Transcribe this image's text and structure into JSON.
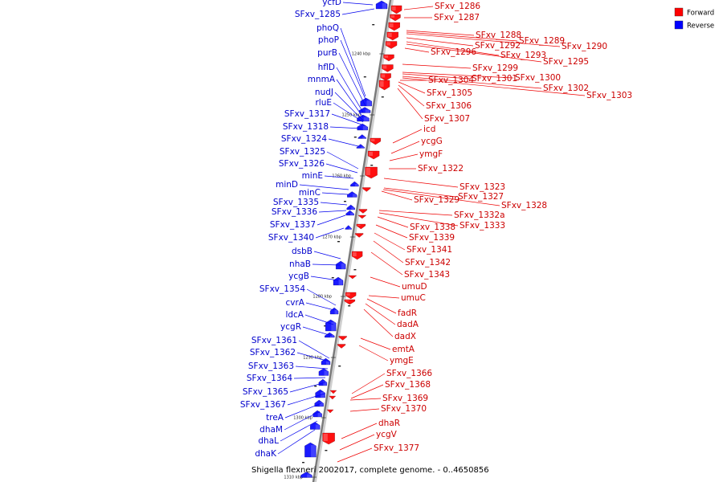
{
  "caption": "Shigella flexneri 2002017, complete genome. - 0..4650856",
  "legend": [
    {
      "label": "Forward",
      "color": "#ff0000"
    },
    {
      "label": "Reverse",
      "color": "#0000ff"
    }
  ],
  "ticks": [
    "1240 kbp",
    "1250 kbp",
    "1260 kbp",
    "1270 kbp",
    "1280 kbp",
    "1290 kbp",
    "1300 kbp",
    "1310 kbp"
  ],
  "reverse_labels": [
    "ycfD",
    "SFxv_1285",
    "phoQ",
    "phoP",
    "purB",
    "hflD",
    "mnmA",
    "nudJ",
    "rluE",
    "SFxv_1317",
    "SFxv_1318",
    "SFxv_1324",
    "SFxv_1325",
    "SFxv_1326",
    "minE",
    "minD",
    "minC",
    "SFxv_1335",
    "SFxv_1336",
    "SFxv_1337",
    "SFxv_1340",
    "dsbB",
    "nhaB",
    "ycgB",
    "SFxv_1354",
    "cvrA",
    "ldcA",
    "ycgR",
    "SFxv_1361",
    "SFxv_1362",
    "SFxv_1363",
    "SFxv_1364",
    "SFxv_1365",
    "SFxv_1367",
    "treA",
    "dhaM",
    "dhaL",
    "dhaK"
  ],
  "forward_labels": [
    "SFxv_1286",
    "SFxv_1287",
    "SFxv_1288",
    "SFxv_1289",
    "SFxv_1290",
    "SFxv_1292",
    "SFxv_1293",
    "SFxv_1295",
    "SFxv_1296",
    "SFxv_1299",
    "SFxv_1300",
    "SFxv_1301",
    "SFxv_1302",
    "SFxv_1303",
    "SFxv_1304",
    "SFxv_1305",
    "SFxv_1306",
    "SFxv_1307",
    "icd",
    "ycgG",
    "ymgF",
    "SFxv_1322",
    "SFxv_1323",
    "SFxv_1327",
    "SFxv_1328",
    "SFxv_1329",
    "SFxv_1332a",
    "SFxv_1333",
    "SFxv_1338",
    "SFxv_1339",
    "SFxv_1341",
    "SFxv_1342",
    "SFxv_1343",
    "umuD",
    "umuC",
    "fadR",
    "dadA",
    "dadX",
    "emtA",
    "ymgE",
    "SFxv_1366",
    "SFxv_1368",
    "SFxv_1369",
    "SFxv_1370",
    "dhaR",
    "ycgV",
    "SFxv_1377"
  ]
}
